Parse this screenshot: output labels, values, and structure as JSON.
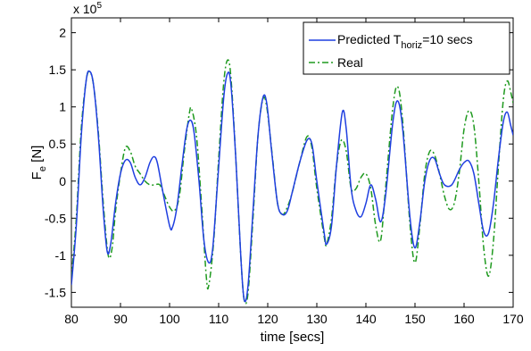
{
  "chart_data": {
    "type": "line",
    "xlabel": "time [secs]",
    "ylabel": {
      "main": "F",
      "sub": "e",
      "unit": " [N]"
    },
    "exponent_label": {
      "prefix": "x 10",
      "power": "5"
    },
    "xlim": [
      80,
      170
    ],
    "ylim": [
      -1.7,
      2.2
    ],
    "x_ticks": [
      80,
      90,
      100,
      110,
      120,
      130,
      140,
      150,
      160,
      170
    ],
    "y_ticks": [
      -1.5,
      -1,
      -0.5,
      0,
      0.5,
      1,
      1.5,
      2
    ],
    "y_tick_labels": [
      "-1.5",
      "-1",
      "-0.5",
      "0",
      "0.5",
      "1",
      "1.5",
      "2"
    ],
    "grid": false,
    "legend_position": "top-right",
    "series": [
      {
        "name": "Predicted T",
        "name_sub": "horiz",
        "name_suffix": "=10 secs",
        "color": "#1f3fe0",
        "style": "solid",
        "points": [
          [
            80,
            -1.4
          ],
          [
            81,
            -0.6
          ],
          [
            82,
            0.6
          ],
          [
            83,
            1.35
          ],
          [
            83.7,
            1.48
          ],
          [
            84.5,
            1.3
          ],
          [
            85.5,
            0.6
          ],
          [
            86.5,
            -0.4
          ],
          [
            87.3,
            -0.95
          ],
          [
            88,
            -0.85
          ],
          [
            89,
            -0.3
          ],
          [
            90,
            0.1
          ],
          [
            91,
            0.28
          ],
          [
            92,
            0.25
          ],
          [
            93,
            0.05
          ],
          [
            94,
            -0.05
          ],
          [
            95,
            0.05
          ],
          [
            96,
            0.25
          ],
          [
            96.8,
            0.33
          ],
          [
            97.5,
            0.25
          ],
          [
            98.5,
            -0.1
          ],
          [
            100,
            -0.6
          ],
          [
            100.6,
            -0.62
          ],
          [
            101.5,
            -0.35
          ],
          [
            102.5,
            0.2
          ],
          [
            103.5,
            0.7
          ],
          [
            104.3,
            0.82
          ],
          [
            105,
            0.65
          ],
          [
            106,
            0.0
          ],
          [
            107,
            -0.8
          ],
          [
            108,
            -1.1
          ],
          [
            108.8,
            -0.9
          ],
          [
            109.8,
            0.0
          ],
          [
            111,
            1.1
          ],
          [
            111.8,
            1.45
          ],
          [
            112.5,
            1.3
          ],
          [
            113.5,
            0.3
          ],
          [
            114.5,
            -1.0
          ],
          [
            115.2,
            -1.6
          ],
          [
            116,
            -1.4
          ],
          [
            117,
            -0.4
          ],
          [
            118,
            0.6
          ],
          [
            119,
            1.12
          ],
          [
            119.8,
            1.05
          ],
          [
            120.8,
            0.4
          ],
          [
            122,
            -0.3
          ],
          [
            123,
            -0.45
          ],
          [
            124,
            -0.4
          ],
          [
            125,
            -0.15
          ],
          [
            126.5,
            0.25
          ],
          [
            128,
            0.55
          ],
          [
            129,
            0.5
          ],
          [
            130,
            0.0
          ],
          [
            131.5,
            -0.7
          ],
          [
            132,
            -0.85
          ],
          [
            133,
            -0.6
          ],
          [
            134,
            0.2
          ],
          [
            135.2,
            0.93
          ],
          [
            136,
            0.7
          ],
          [
            137,
            -0.1
          ],
          [
            138,
            -0.4
          ],
          [
            139,
            -0.48
          ],
          [
            140,
            -0.3
          ],
          [
            141,
            -0.05
          ],
          [
            142,
            -0.25
          ],
          [
            143,
            -0.55
          ],
          [
            144,
            -0.2
          ],
          [
            145.5,
            0.8
          ],
          [
            146.5,
            1.08
          ],
          [
            147.5,
            0.7
          ],
          [
            149,
            -0.5
          ],
          [
            150,
            -0.9
          ],
          [
            151,
            -0.55
          ],
          [
            152,
            0.0
          ],
          [
            153,
            0.28
          ],
          [
            154,
            0.3
          ],
          [
            155,
            0.1
          ],
          [
            156,
            -0.05
          ],
          [
            157.5,
            -0.05
          ],
          [
            159,
            0.15
          ],
          [
            160,
            0.25
          ],
          [
            161,
            0.27
          ],
          [
            162,
            0.1
          ],
          [
            163,
            -0.3
          ],
          [
            164,
            -0.68
          ],
          [
            165,
            -0.7
          ],
          [
            166,
            -0.3
          ],
          [
            167,
            0.3
          ],
          [
            168,
            0.8
          ],
          [
            168.8,
            0.93
          ],
          [
            169.5,
            0.75
          ],
          [
            170,
            0.62
          ]
        ]
      },
      {
        "name": "Real",
        "color": "#1f9a1f",
        "style": "dashdot",
        "points": [
          [
            80,
            -1.3
          ],
          [
            81,
            -0.5
          ],
          [
            82,
            0.7
          ],
          [
            83,
            1.35
          ],
          [
            83.7,
            1.47
          ],
          [
            84.5,
            1.3
          ],
          [
            85.5,
            0.65
          ],
          [
            86.5,
            -0.3
          ],
          [
            87.5,
            -1.0
          ],
          [
            88.3,
            -0.9
          ],
          [
            89,
            -0.4
          ],
          [
            90,
            0.1
          ],
          [
            91,
            0.45
          ],
          [
            92,
            0.4
          ],
          [
            93,
            0.2
          ],
          [
            94,
            0.1
          ],
          [
            95,
            0.0
          ],
          [
            96,
            -0.05
          ],
          [
            97,
            -0.05
          ],
          [
            98,
            -0.05
          ],
          [
            99,
            -0.2
          ],
          [
            100,
            -0.35
          ],
          [
            101,
            -0.4
          ],
          [
            102,
            -0.2
          ],
          [
            103,
            0.4
          ],
          [
            104,
            0.9
          ],
          [
            104.5,
            0.97
          ],
          [
            105.5,
            0.6
          ],
          [
            106.5,
            -0.3
          ],
          [
            107.5,
            -1.3
          ],
          [
            108,
            -1.4
          ],
          [
            109,
            -0.8
          ],
          [
            110,
            0.3
          ],
          [
            111,
            1.3
          ],
          [
            111.8,
            1.63
          ],
          [
            112.5,
            1.4
          ],
          [
            113.5,
            0.3
          ],
          [
            114.5,
            -1.0
          ],
          [
            115.2,
            -1.6
          ],
          [
            116,
            -1.5
          ],
          [
            117,
            -0.5
          ],
          [
            118,
            0.6
          ],
          [
            119,
            1.1
          ],
          [
            119.8,
            1.0
          ],
          [
            121,
            0.3
          ],
          [
            122,
            -0.3
          ],
          [
            123,
            -0.45
          ],
          [
            124,
            -0.35
          ],
          [
            125,
            -0.15
          ],
          [
            126.5,
            0.25
          ],
          [
            128,
            0.6
          ],
          [
            129,
            0.45
          ],
          [
            130,
            -0.1
          ],
          [
            131.5,
            -0.75
          ],
          [
            132,
            -0.85
          ],
          [
            133,
            -0.5
          ],
          [
            134,
            0.2
          ],
          [
            135,
            0.55
          ],
          [
            136,
            0.4
          ],
          [
            137,
            -0.1
          ],
          [
            138,
            -0.1
          ],
          [
            139,
            0.05
          ],
          [
            140,
            0.1
          ],
          [
            141,
            -0.1
          ],
          [
            142,
            -0.6
          ],
          [
            143,
            -0.8
          ],
          [
            144,
            -0.1
          ],
          [
            145.5,
            1.0
          ],
          [
            146.5,
            1.27
          ],
          [
            147.5,
            0.8
          ],
          [
            149,
            -0.6
          ],
          [
            150,
            -1.1
          ],
          [
            151,
            -0.6
          ],
          [
            152,
            0.1
          ],
          [
            153,
            0.4
          ],
          [
            154,
            0.35
          ],
          [
            155,
            0.1
          ],
          [
            156,
            -0.2
          ],
          [
            157,
            -0.38
          ],
          [
            158,
            -0.3
          ],
          [
            159,
            0.1
          ],
          [
            160,
            0.7
          ],
          [
            161,
            0.95
          ],
          [
            162,
            0.75
          ],
          [
            163,
            0.0
          ],
          [
            164,
            -0.9
          ],
          [
            165,
            -1.28
          ],
          [
            166,
            -0.8
          ],
          [
            167,
            0.2
          ],
          [
            168,
            1.1
          ],
          [
            168.8,
            1.35
          ],
          [
            169.5,
            1.2
          ],
          [
            170,
            1.05
          ]
        ]
      }
    ]
  }
}
